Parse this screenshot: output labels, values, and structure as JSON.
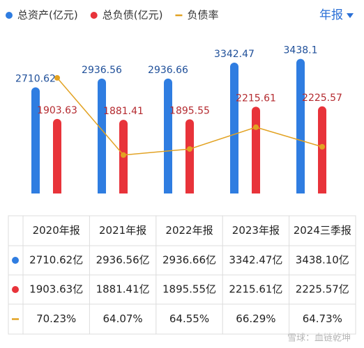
{
  "chart_data": {
    "type": "bar",
    "categories": [
      "2020年报",
      "2021年报",
      "2022年报",
      "2023年报",
      "2024三季报"
    ],
    "series": [
      {
        "name": "总资产(亿元)",
        "color": "#2f7de1",
        "values": [
          2710.62,
          2936.56,
          2936.66,
          3342.47,
          3438.1
        ],
        "value_labels": [
          "2710.62亿",
          "2936.56亿",
          "2936.66亿",
          "3342.47亿",
          "3438.10亿"
        ]
      },
      {
        "name": "总负债(亿元)",
        "color": "#e8333a",
        "values": [
          1903.63,
          1881.41,
          1895.55,
          2215.61,
          2225.57
        ],
        "value_labels": [
          "1903.63亿",
          "1881.41亿",
          "1895.55亿",
          "2215.61亿",
          "2225.57亿"
        ]
      },
      {
        "name": "负债率",
        "type": "line",
        "axis": "y2",
        "color": "#e2a222",
        "values": [
          70.23,
          64.07,
          64.55,
          66.29,
          64.73
        ],
        "value_labels": [
          "70.23%",
          "64.07%",
          "64.55%",
          "66.29%",
          "64.73%"
        ]
      }
    ],
    "ylim": [
      0,
      4000
    ],
    "y2lim": [
      61,
      73.5
    ]
  },
  "period_selector": "年报",
  "watermark": "雪球：血链乾坤"
}
